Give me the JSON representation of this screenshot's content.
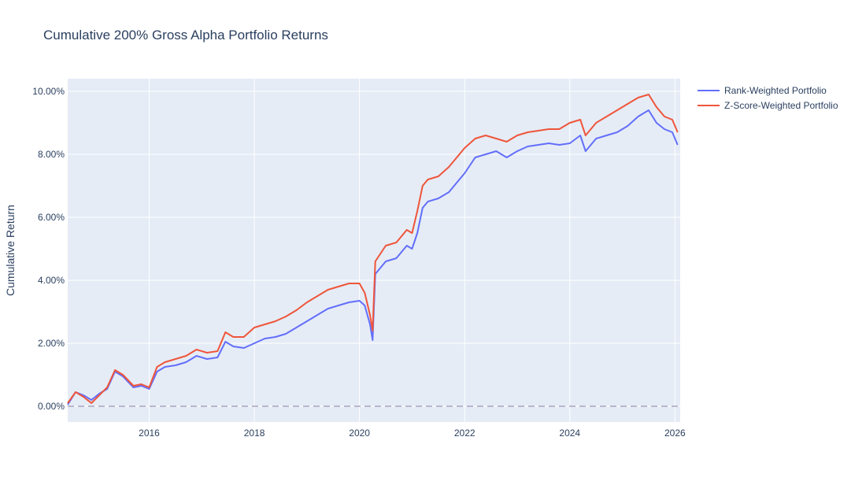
{
  "chart_data": {
    "type": "line",
    "title": "Cumulative 200% Gross Alpha Portfolio Returns",
    "xlabel": "",
    "ylabel": "Cumulative Return",
    "x_ticks": [
      "2016",
      "2018",
      "2020",
      "2022",
      "2024",
      "2026"
    ],
    "y_ticks": [
      "0.00%",
      "2.00%",
      "4.00%",
      "6.00%",
      "8.00%",
      "10.00%"
    ],
    "xlim": [
      2014.45,
      2026.1
    ],
    "ylim": [
      -0.5,
      10.4
    ],
    "grid": true,
    "legend_position": "top-right",
    "background_color": "#e5ecf6",
    "zero_line": {
      "y": 0,
      "style": "dashed",
      "color": "#a9a3bd"
    },
    "series": [
      {
        "name": "Rank-Weighted Portfolio",
        "color": "#636efa",
        "x": [
          2014.45,
          2014.6,
          2014.75,
          2014.9,
          2015.05,
          2015.2,
          2015.35,
          2015.5,
          2015.7,
          2015.85,
          2016.0,
          2016.15,
          2016.3,
          2016.5,
          2016.7,
          2016.9,
          2017.1,
          2017.3,
          2017.45,
          2017.6,
          2017.8,
          2018.0,
          2018.2,
          2018.4,
          2018.6,
          2018.8,
          2019.0,
          2019.2,
          2019.4,
          2019.6,
          2019.8,
          2020.0,
          2020.1,
          2020.2,
          2020.25,
          2020.3,
          2020.5,
          2020.7,
          2020.9,
          2021.0,
          2021.1,
          2021.2,
          2021.3,
          2021.5,
          2021.7,
          2021.9,
          2022.0,
          2022.2,
          2022.4,
          2022.6,
          2022.8,
          2023.0,
          2023.2,
          2023.4,
          2023.6,
          2023.8,
          2024.0,
          2024.2,
          2024.3,
          2024.5,
          2024.7,
          2024.9,
          2025.1,
          2025.3,
          2025.5,
          2025.65,
          2025.8,
          2025.95,
          2026.05
        ],
        "values": [
          0.05,
          0.45,
          0.35,
          0.2,
          0.4,
          0.55,
          1.1,
          0.95,
          0.6,
          0.65,
          0.55,
          1.1,
          1.25,
          1.3,
          1.4,
          1.6,
          1.5,
          1.55,
          2.05,
          1.9,
          1.85,
          2.0,
          2.15,
          2.2,
          2.3,
          2.5,
          2.7,
          2.9,
          3.1,
          3.2,
          3.3,
          3.35,
          3.2,
          2.6,
          2.1,
          4.2,
          4.6,
          4.7,
          5.1,
          5.0,
          5.5,
          6.3,
          6.5,
          6.6,
          6.8,
          7.2,
          7.4,
          7.9,
          8.0,
          8.1,
          7.9,
          8.1,
          8.25,
          8.3,
          8.35,
          8.3,
          8.35,
          8.6,
          8.1,
          8.5,
          8.6,
          8.7,
          8.9,
          9.2,
          9.4,
          9.0,
          8.8,
          8.7,
          8.3
        ]
      },
      {
        "name": "Z-Score-Weighted Portfolio",
        "color": "#ef553b",
        "x": [
          2014.45,
          2014.6,
          2014.75,
          2014.9,
          2015.05,
          2015.2,
          2015.35,
          2015.5,
          2015.7,
          2015.85,
          2016.0,
          2016.15,
          2016.3,
          2016.5,
          2016.7,
          2016.9,
          2017.1,
          2017.3,
          2017.45,
          2017.6,
          2017.8,
          2018.0,
          2018.2,
          2018.4,
          2018.6,
          2018.8,
          2019.0,
          2019.2,
          2019.4,
          2019.6,
          2019.8,
          2020.0,
          2020.1,
          2020.2,
          2020.25,
          2020.3,
          2020.5,
          2020.7,
          2020.9,
          2021.0,
          2021.1,
          2021.2,
          2021.3,
          2021.5,
          2021.7,
          2021.9,
          2022.0,
          2022.2,
          2022.4,
          2022.6,
          2022.8,
          2023.0,
          2023.2,
          2023.4,
          2023.6,
          2023.8,
          2024.0,
          2024.2,
          2024.3,
          2024.5,
          2024.7,
          2024.9,
          2025.1,
          2025.3,
          2025.5,
          2025.65,
          2025.8,
          2025.95,
          2026.05
        ],
        "values": [
          0.1,
          0.45,
          0.3,
          0.1,
          0.35,
          0.6,
          1.15,
          1.0,
          0.65,
          0.7,
          0.6,
          1.25,
          1.4,
          1.5,
          1.6,
          1.8,
          1.7,
          1.75,
          2.35,
          2.2,
          2.2,
          2.5,
          2.6,
          2.7,
          2.85,
          3.05,
          3.3,
          3.5,
          3.7,
          3.8,
          3.9,
          3.9,
          3.6,
          2.9,
          2.4,
          4.6,
          5.1,
          5.2,
          5.6,
          5.5,
          6.2,
          7.0,
          7.2,
          7.3,
          7.6,
          8.0,
          8.2,
          8.5,
          8.6,
          8.5,
          8.4,
          8.6,
          8.7,
          8.75,
          8.8,
          8.8,
          9.0,
          9.1,
          8.6,
          9.0,
          9.2,
          9.4,
          9.6,
          9.8,
          9.9,
          9.5,
          9.2,
          9.1,
          8.7
        ]
      }
    ]
  }
}
